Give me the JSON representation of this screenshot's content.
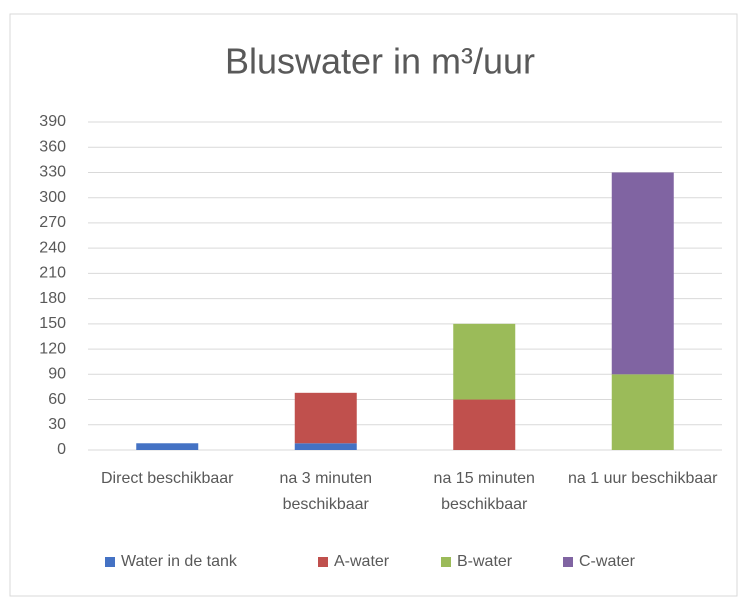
{
  "chart_data": {
    "type": "stacked_bar",
    "title": "Bluswater in m³/uur",
    "categories": [
      "Direct beschikbaar",
      "na 3 minuten beschikbaar",
      "na 15 minuten beschikbaar",
      "na 1 uur beschikbaar"
    ],
    "series": [
      {
        "name": "Water in de tank",
        "color": "#4472c4",
        "values": [
          8,
          8,
          0,
          0
        ]
      },
      {
        "name": "A-water",
        "color": "#c0504d",
        "values": [
          0,
          60,
          60,
          0
        ]
      },
      {
        "name": "B-water",
        "color": "#9bbb59",
        "values": [
          0,
          0,
          90,
          90
        ]
      },
      {
        "name": "C-water",
        "color": "#8064a2",
        "values": [
          0,
          0,
          0,
          240
        ]
      }
    ],
    "ylim": [
      0,
      390
    ],
    "yticks": [
      0,
      30,
      60,
      90,
      120,
      150,
      180,
      210,
      240,
      270,
      300,
      330,
      360,
      390
    ],
    "grid": true,
    "legend": "bottom"
  }
}
